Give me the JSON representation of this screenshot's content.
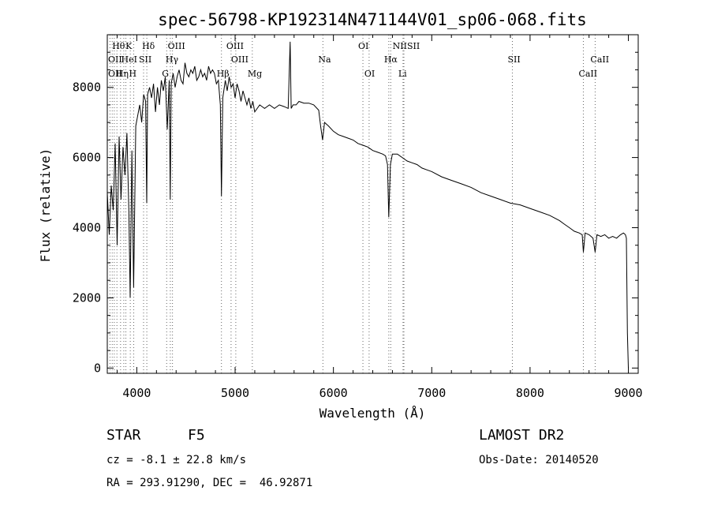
{
  "chart_data": {
    "type": "line",
    "title": "spec-56798-KP192314N471144V01_sp06-068.fits",
    "xlabel": "Wavelength (Å)",
    "ylabel": "Flux (relative)",
    "xlim": [
      3700,
      9100
    ],
    "ylim": [
      -150,
      9500
    ],
    "xticks": [
      4000,
      5000,
      6000,
      7000,
      8000,
      9000
    ],
    "yticks": [
      0,
      2000,
      4000,
      6000,
      8000
    ],
    "grid": false,
    "series": [
      {
        "x": [
          3700,
          3720,
          3740,
          3760,
          3780,
          3800,
          3820,
          3840,
          3860,
          3880,
          3900,
          3920,
          3933,
          3950,
          3968,
          3990,
          4010,
          4030,
          4050,
          4070,
          4090,
          4101,
          4110,
          4130,
          4150,
          4170,
          4190,
          4210,
          4230,
          4250,
          4270,
          4290,
          4310,
          4330,
          4340,
          4350,
          4370,
          4390,
          4410,
          4430,
          4450,
          4470,
          4490,
          4510,
          4530,
          4550,
          4570,
          4590,
          4610,
          4630,
          4650,
          4670,
          4690,
          4710,
          4730,
          4750,
          4770,
          4790,
          4810,
          4830,
          4850,
          4861,
          4875,
          4900,
          4920,
          4940,
          4960,
          4980,
          5000,
          5020,
          5040,
          5060,
          5080,
          5100,
          5120,
          5140,
          5160,
          5180,
          5200,
          5250,
          5300,
          5350,
          5400,
          5450,
          5500,
          5540,
          5560,
          5570,
          5590,
          5620,
          5650,
          5700,
          5750,
          5800,
          5850,
          5870,
          5890,
          5910,
          5950,
          6000,
          6050,
          6100,
          6150,
          6200,
          6250,
          6300,
          6350,
          6400,
          6450,
          6500,
          6530,
          6550,
          6563,
          6580,
          6600,
          6650,
          6700,
          6750,
          6800,
          6850,
          6900,
          6950,
          7000,
          7100,
          7200,
          7300,
          7400,
          7500,
          7600,
          7700,
          7800,
          7900,
          8000,
          8100,
          8200,
          8300,
          8350,
          8400,
          8450,
          8500,
          8530,
          8542,
          8560,
          8600,
          8640,
          8662,
          8680,
          8720,
          8760,
          8800,
          8840,
          8880,
          8920,
          8950,
          8970,
          8980,
          8990,
          9000
        ],
        "y": [
          5000,
          3800,
          5200,
          4500,
          6400,
          3500,
          6600,
          4800,
          6300,
          5500,
          6700,
          4400,
          2000,
          6200,
          2300,
          6900,
          7200,
          7500,
          7000,
          7800,
          7600,
          4700,
          7800,
          8000,
          7700,
          8100,
          7300,
          8000,
          7500,
          8200,
          7900,
          8300,
          6800,
          8200,
          4800,
          8100,
          8400,
          8000,
          8300,
          8500,
          8200,
          8100,
          8700,
          8400,
          8300,
          8500,
          8400,
          8600,
          8200,
          8300,
          8500,
          8300,
          8400,
          8200,
          8600,
          8400,
          8500,
          8400,
          8100,
          8200,
          7500,
          4900,
          7700,
          8200,
          7900,
          8300,
          8000,
          8100,
          7700,
          8100,
          7900,
          7600,
          7900,
          7700,
          7500,
          7700,
          7400,
          7600,
          7300,
          7500,
          7400,
          7500,
          7400,
          7500,
          7450,
          7400,
          9300,
          7400,
          7500,
          7500,
          7600,
          7550,
          7550,
          7500,
          7350,
          6900,
          6500,
          7000,
          6900,
          6750,
          6650,
          6600,
          6550,
          6500,
          6400,
          6350,
          6300,
          6200,
          6150,
          6100,
          6050,
          5800,
          4300,
          5800,
          6100,
          6100,
          6000,
          5900,
          5850,
          5800,
          5700,
          5650,
          5600,
          5450,
          5350,
          5250,
          5150,
          5000,
          4900,
          4800,
          4700,
          4650,
          4550,
          4450,
          4350,
          4200,
          4100,
          4000,
          3900,
          3850,
          3800,
          3300,
          3850,
          3800,
          3700,
          3300,
          3800,
          3750,
          3800,
          3700,
          3750,
          3700,
          3800,
          3850,
          3800,
          3700,
          1000,
          0
        ]
      }
    ],
    "lines": {
      "row1": [
        {
          "label": "Hθ",
          "x": 3798
        },
        {
          "label": "K",
          "x": 3934
        },
        {
          "label": "Hδ",
          "x": 4102
        },
        {
          "label": "OIII",
          "x": 4363
        },
        {
          "label": "OIII",
          "x": 4959
        },
        {
          "label": "OI",
          "x": 6300
        },
        {
          "label": "NIISII",
          "x": 6650
        }
      ],
      "row2": [
        {
          "label": "OII",
          "x": 3727
        },
        {
          "label": "HeI",
          "x": 3889
        },
        {
          "label": "SII",
          "x": 4069
        },
        {
          "label": "Hγ",
          "x": 4341
        },
        {
          "label": "OIII",
          "x": 5007
        },
        {
          "label": "Na",
          "x": 5893
        },
        {
          "label": "Hα",
          "x": 6563
        },
        {
          "label": "SII",
          "x": 7820
        },
        {
          "label": "CaII",
          "x": 8662
        }
      ],
      "row3": [
        {
          "label": "OII",
          "x": 3727
        },
        {
          "label": "Hη",
          "x": 3835
        },
        {
          "label": "H",
          "x": 3969
        },
        {
          "label": "G",
          "x": 4304
        },
        {
          "label": "Hβ",
          "x": 4861
        },
        {
          "label": "Mg",
          "x": 5175
        },
        {
          "label": "OI",
          "x": 6363
        },
        {
          "label": "Li",
          "x": 6708
        },
        {
          "label": "CaII",
          "x": 8542
        }
      ],
      "dotted_x": [
        3727,
        3750,
        3771,
        3798,
        3835,
        3868,
        3889,
        3934,
        3969,
        4069,
        4102,
        4304,
        4341,
        4363,
        4861,
        4959,
        5007,
        5175,
        5893,
        6300,
        6363,
        6563,
        6583,
        6708,
        6717,
        7820,
        8542,
        8662
      ]
    }
  },
  "info": {
    "object_type": "STAR",
    "subclass": "F5",
    "survey": "LAMOST DR2",
    "redshift": "cz = -8.1 ± 22.8 km/s",
    "obs_date": "Obs-Date: 20140520",
    "coords": "RA = 293.91290, DEC =  46.92871"
  }
}
